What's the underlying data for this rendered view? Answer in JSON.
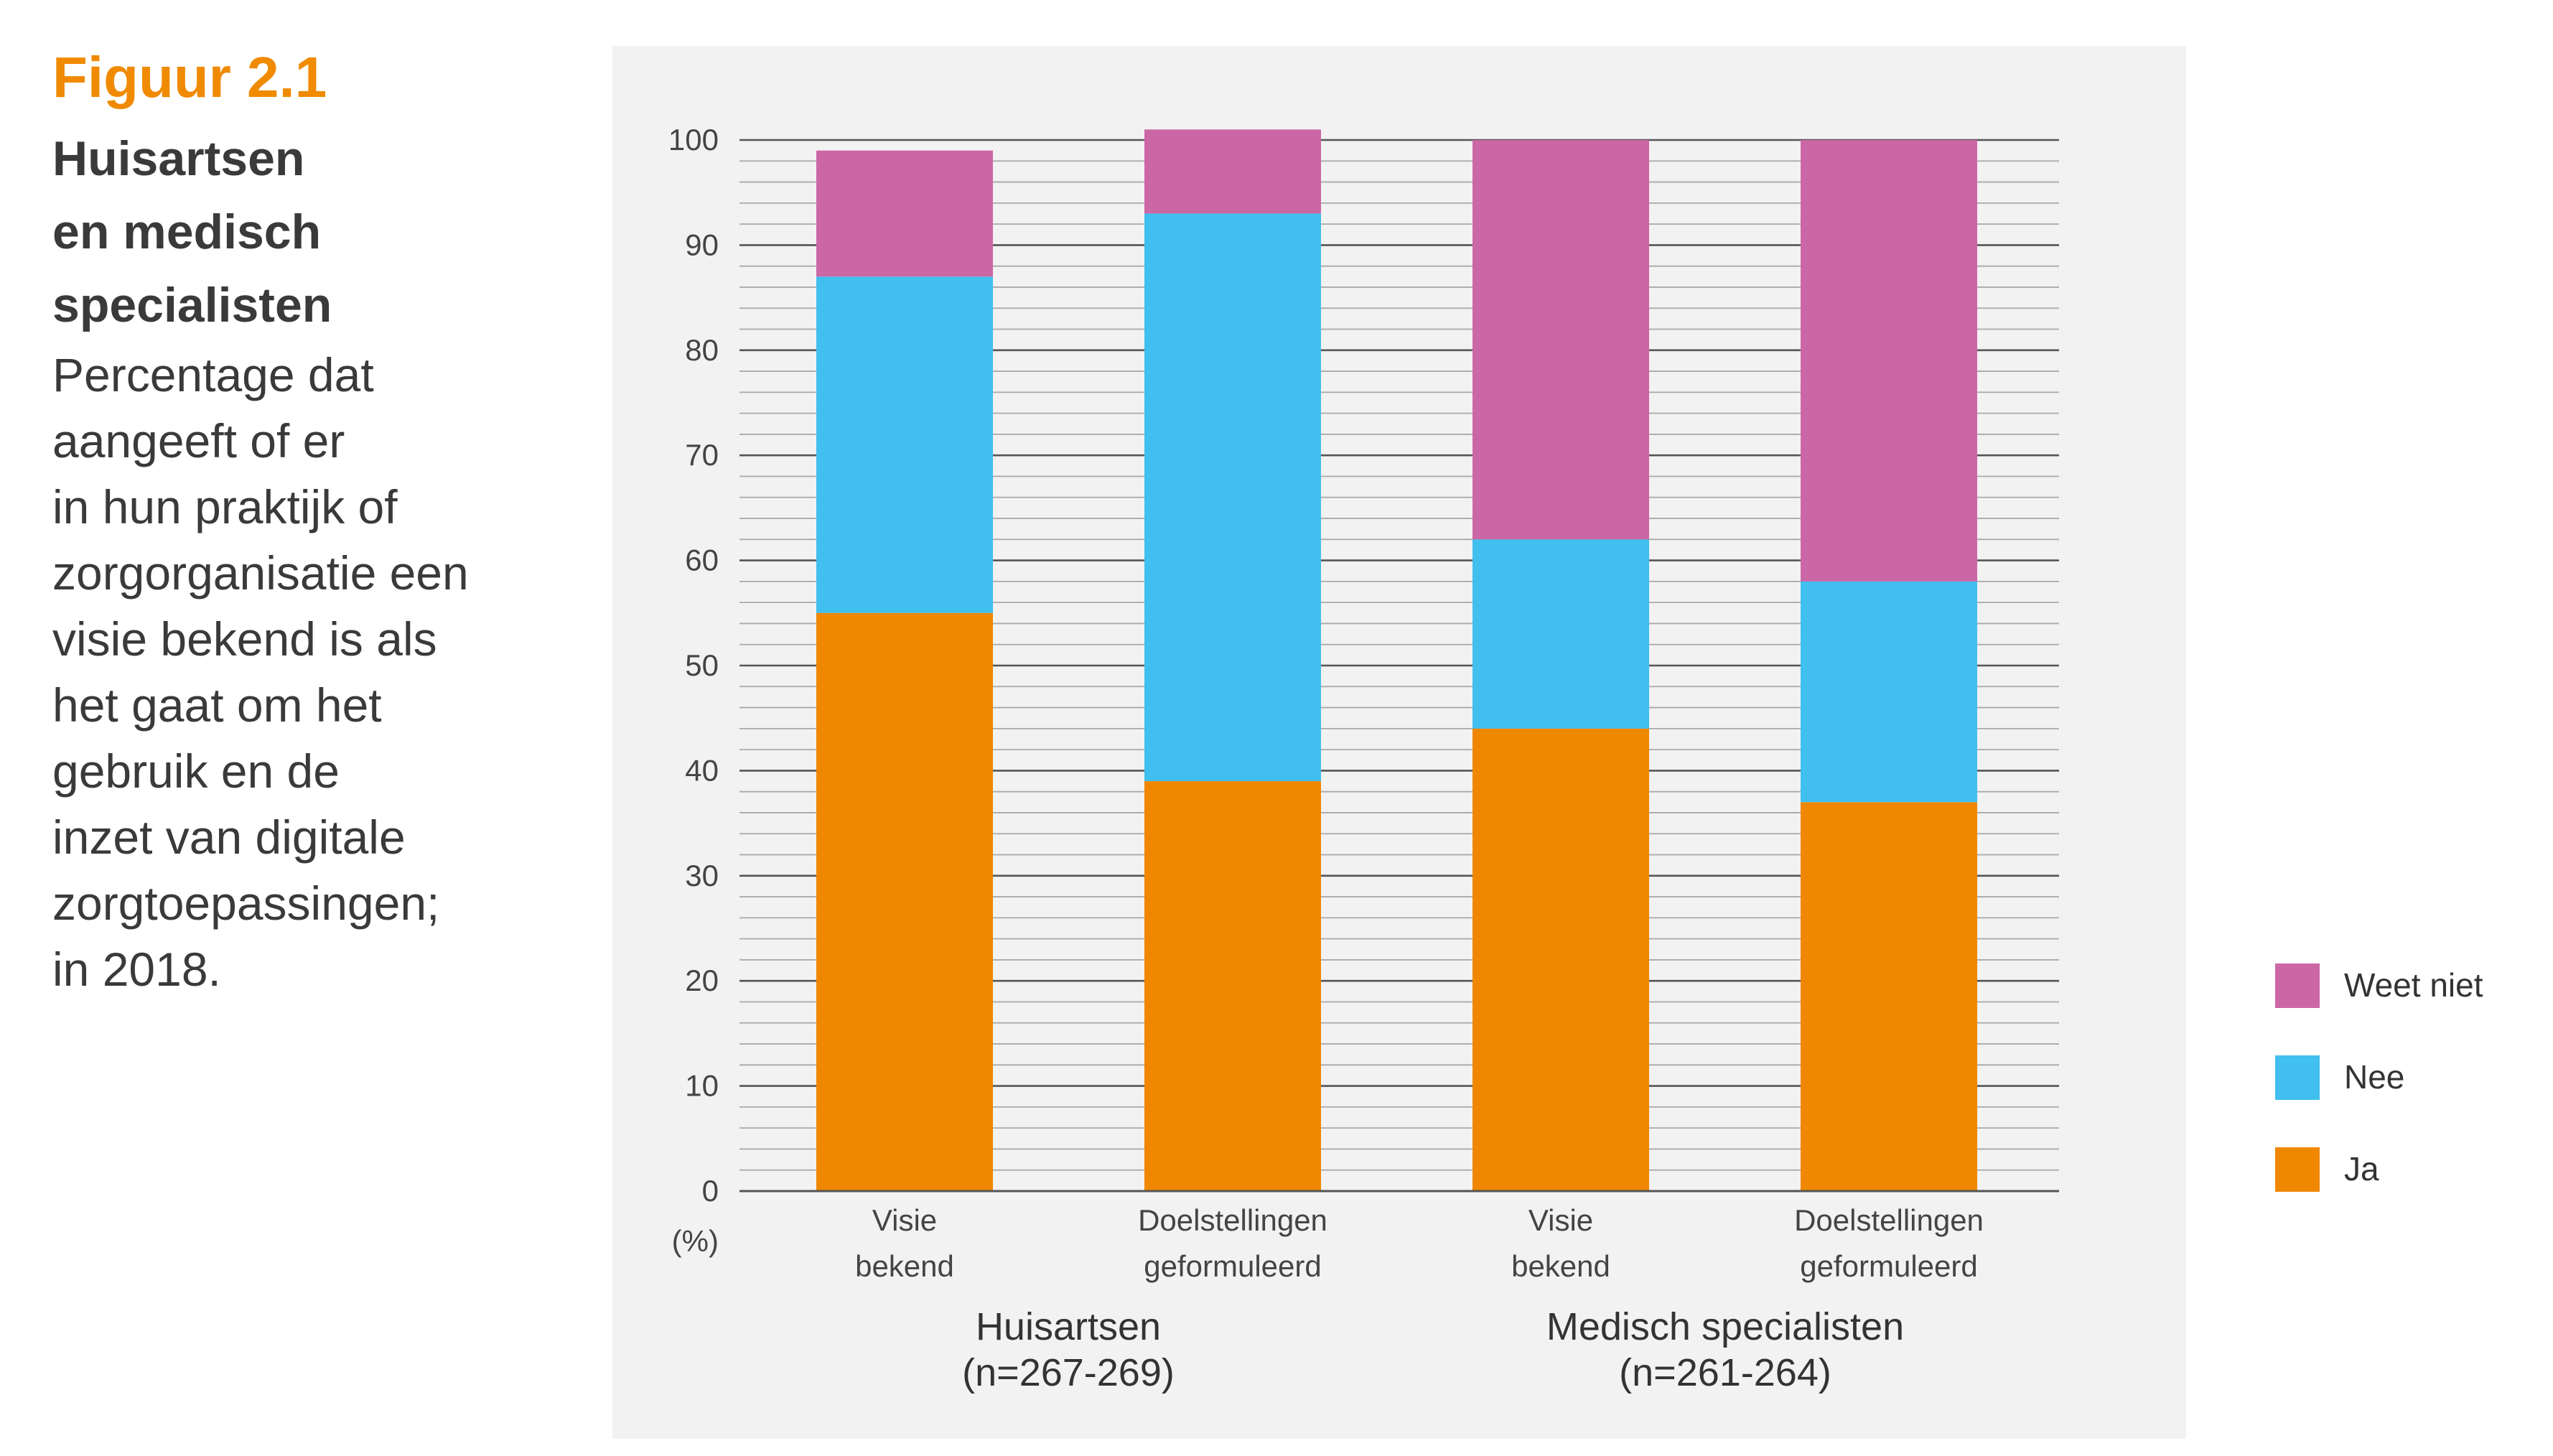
{
  "figure": {
    "label": "Figuur 2.1",
    "title_lines": [
      "Huisartsen",
      "en medisch",
      "specialisten"
    ],
    "description_lines": [
      "Percentage dat",
      "aangeeft of er",
      "in hun praktijk of",
      "zorgorganisatie een",
      "visie bekend is als",
      "het gaat om het",
      "gebruik en de",
      "inzet van digitale",
      "zorgtoepassingen;",
      "in 2018."
    ]
  },
  "colors": {
    "ja": "#f08700",
    "nee": "#41bfee",
    "weet_niet": "#cc67a6",
    "panel": "#f2f2f2",
    "text": "#444444"
  },
  "chart_data": {
    "type": "bar",
    "stacked": true,
    "unit_label": "(%)",
    "ylim": [
      0,
      100
    ],
    "yticks": [
      0,
      10,
      20,
      30,
      40,
      50,
      60,
      70,
      80,
      90,
      100
    ],
    "grid": true,
    "legend_position": "right",
    "categories": [
      [
        "Visie",
        "bekend"
      ],
      [
        "Doelstellingen",
        "geformuleerd"
      ],
      [
        "Visie",
        "bekend"
      ],
      [
        "Doelstellingen",
        "geformuleerd"
      ]
    ],
    "groups": [
      {
        "name": "Huisartsen",
        "n": "(n=267-269)"
      },
      {
        "name": "Medisch specialisten",
        "n": "(n=261-264)"
      }
    ],
    "series": [
      {
        "name": "Ja",
        "color": "#f08700",
        "values": [
          55,
          39,
          44,
          37
        ]
      },
      {
        "name": "Nee",
        "color": "#41bfee",
        "values": [
          32,
          54,
          18,
          21
        ]
      },
      {
        "name": "Weet niet",
        "color": "#cc67a6",
        "values": [
          12,
          8,
          38,
          42
        ]
      }
    ],
    "legend_order": [
      "Weet niet",
      "Nee",
      "Ja"
    ]
  }
}
